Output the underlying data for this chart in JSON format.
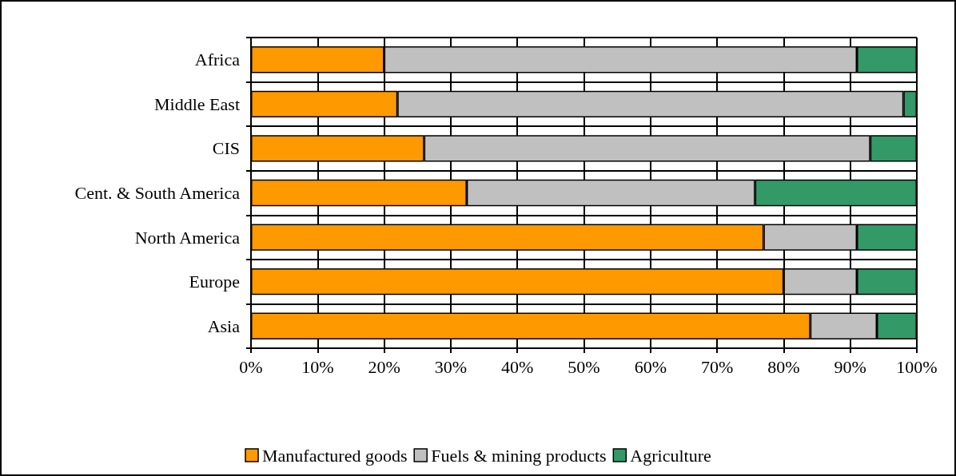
{
  "chart_data": {
    "type": "bar",
    "orientation": "horizontal",
    "stacked": true,
    "categories": [
      "Africa",
      "Middle East",
      "CIS",
      "Cent. & South America",
      "North America",
      "Europe",
      "Asia"
    ],
    "series": [
      {
        "name": "Manufactured goods",
        "color": "#ff9900",
        "values": [
          20,
          22,
          26,
          32.4,
          77,
          80,
          84
        ]
      },
      {
        "name": "Fuels & mining products",
        "color": "#c0c0c0",
        "values": [
          71,
          76,
          67,
          43.3,
          14,
          11,
          10
        ]
      },
      {
        "name": "Agriculture",
        "color": "#339966",
        "values": [
          9,
          2,
          7,
          24.3,
          9,
          9,
          6
        ]
      }
    ],
    "xlim": [
      0,
      100
    ],
    "xticks": [
      {
        "value": 0,
        "label": "0%"
      },
      {
        "value": 10,
        "label": "10%"
      },
      {
        "value": 20,
        "label": "20%"
      },
      {
        "value": 30,
        "label": "30%"
      },
      {
        "value": 40,
        "label": "40%"
      },
      {
        "value": 50,
        "label": "50%"
      },
      {
        "value": 60,
        "label": "60%"
      },
      {
        "value": 70,
        "label": "70%"
      },
      {
        "value": 80,
        "label": "80%"
      },
      {
        "value": 90,
        "label": "90%"
      },
      {
        "value": 100,
        "label": "100%"
      }
    ],
    "grid": true,
    "legend": "bottom"
  }
}
